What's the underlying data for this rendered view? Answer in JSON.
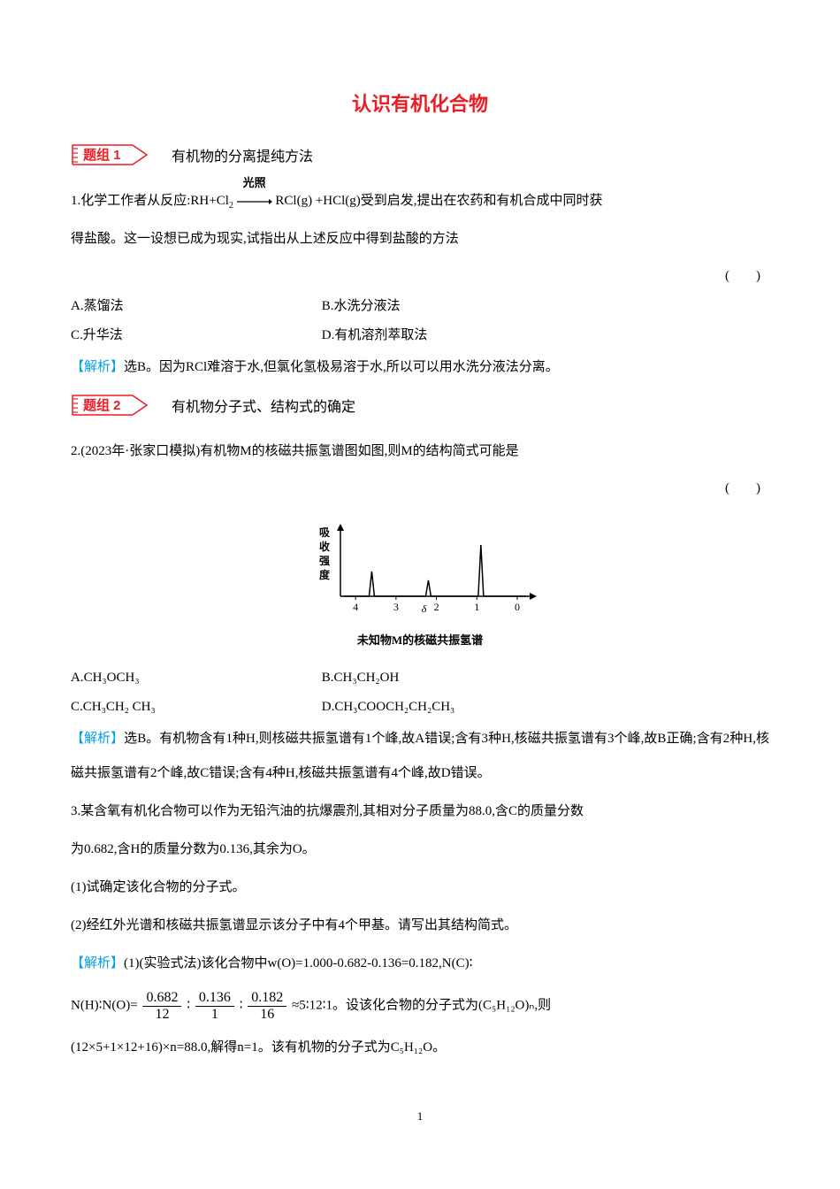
{
  "title": "认识有机化合物",
  "group1": {
    "label": "题组 1",
    "title": "有机物的分离提纯方法"
  },
  "q1": {
    "stem_a": "1.化学工作者从反应:RH+Cl",
    "stem_sub2": "2",
    "over_arrow_top": "光照",
    "stem_b": "RCl(g) +HCl(g)受到启发,提出在农药和有机合成中同时获",
    "stem_c": "得盐酸。这一设想已成为现实,试指出从上述反应中得到盐酸的方法",
    "paren": "(　　)",
    "optA": "A.蒸馏法",
    "optB": "B.水洗分液法",
    "optC": "C.升华法",
    "optD": "D.有机溶剂萃取法",
    "analysis_label": "【解析】",
    "analysis": "选B。因为RCl难溶于水,但氯化氢极易溶于水,所以可以用水洗分液法分离。"
  },
  "group2": {
    "label": "题组 2",
    "title": "有机物分子式、结构式的确定"
  },
  "q2": {
    "stem": "2.(2023年·张家口模拟)有机物M的核磁共振氢谱图如图,则M的结构简式可能是",
    "paren": "(　　)",
    "chart": {
      "ylabel": "吸收强度",
      "xticks": [
        "4",
        "3",
        "2",
        "1",
        "0"
      ],
      "xlabel_delta": "δ",
      "caption": "未知物M的核磁共振氢谱",
      "peaks": [
        {
          "x": 3.6,
          "h": 28
        },
        {
          "x": 2.2,
          "h": 18
        },
        {
          "x": 0.9,
          "h": 58
        }
      ],
      "axis_color": "#000000",
      "line_color": "#000000",
      "font_size": 12
    },
    "optA": "A.CH₃OCH₃",
    "optB": "B.CH₃CH₂OH",
    "optC": "C.CH₃CH₂ CH₃",
    "optD": "D.CH₃COOCH₂CH₂CH₃",
    "analysis_label": "【解析】",
    "analysis": "选B。有机物含有1种H,则核磁共振氢谱有1个峰,故A错误;含有3种H,核磁共振氢谱有3个峰,故B正确;含有2种H,核磁共振氢谱有2个峰,故C错误;含有4种H,核磁共振氢谱有4个峰,故D错误。"
  },
  "q3": {
    "stem_a": "3.某含氧有机化合物可以作为无铅汽油的抗爆震剂,其相对分子质量为88.0,含C的质量分数",
    "stem_b": "为0.682,含H的质量分数为0.136,其余为O。",
    "sub1": "(1)试确定该化合物的分子式。",
    "sub2": "(2)经红外光谱和核磁共振氢谱显示该分子中有4个甲基。请写出其结构简式。",
    "analysis_label": "【解析】",
    "analysis_a": "(1)(实验式法)该化合物中w(O)=1.000-0.682-0.136=0.182,N(C)∶",
    "frac_line_prefix": "N(H)∶N(O)=",
    "frac1_num": "0.682",
    "frac1_den": "12",
    "frac2_num": "0.136",
    "frac2_den": "1",
    "frac3_num": "0.182",
    "frac3_den": "16",
    "frac_line_suffix": "≈5∶12∶1。设该化合物的分子式为(C₅H₁₂O)ₙ,则",
    "analysis_c": "(12×5+1×12+16)×n=88.0,解得n=1。该有机物的分子式为C₅H₁₂O。"
  },
  "colon": "∶",
  "page_num": "1"
}
